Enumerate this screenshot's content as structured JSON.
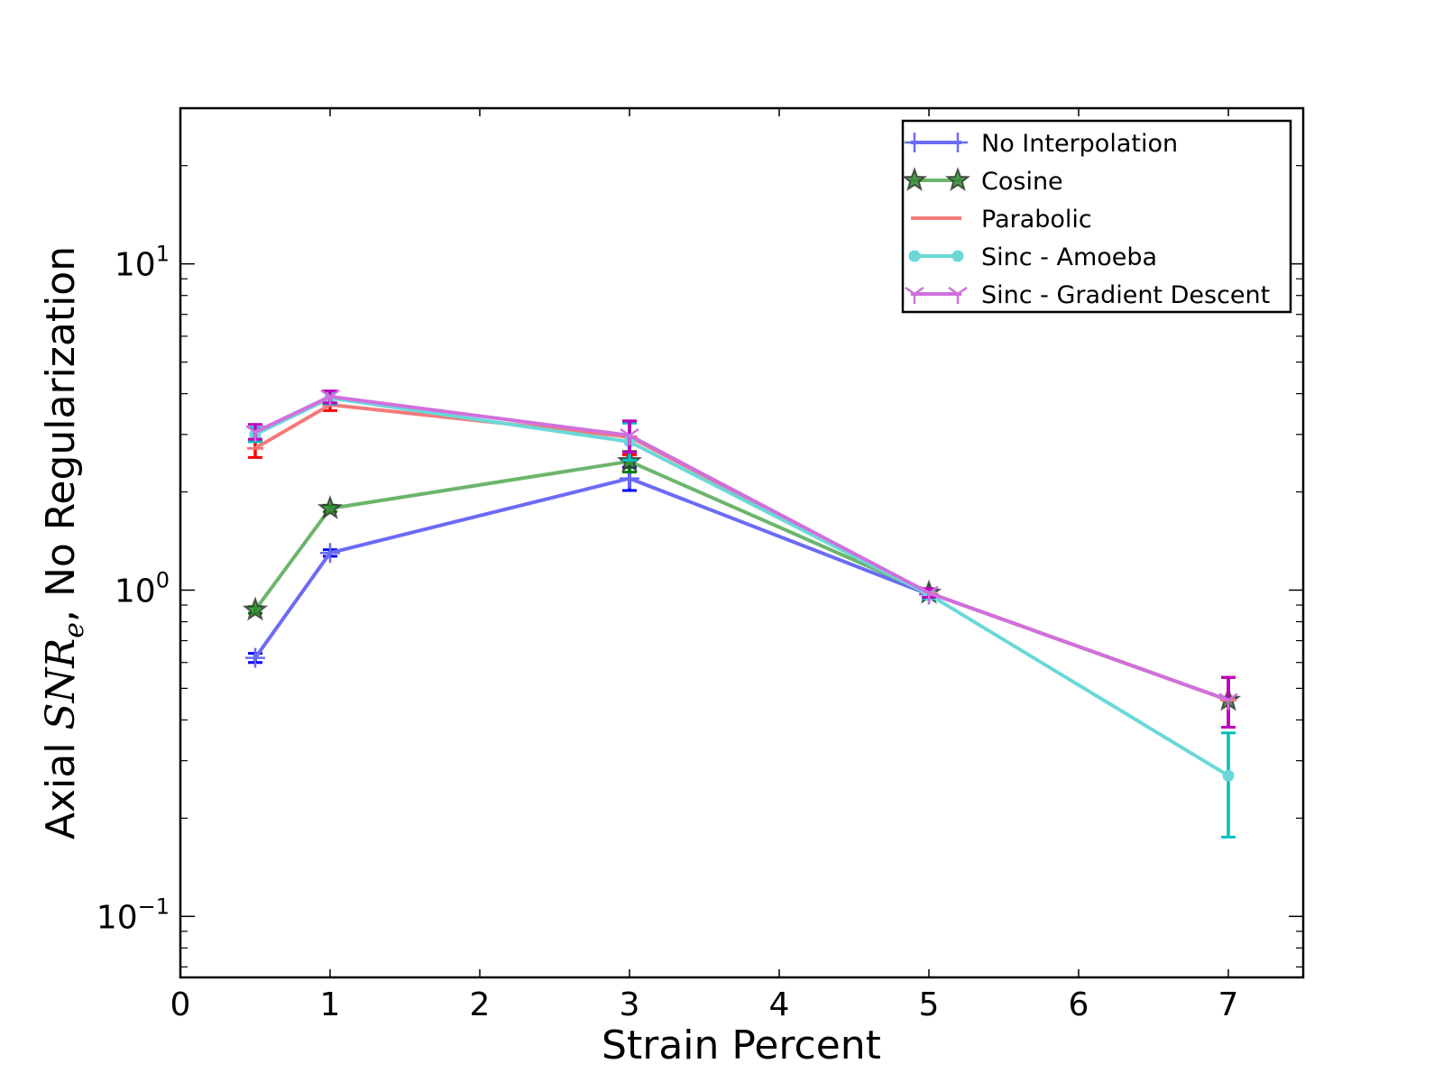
{
  "chart_data": {
    "type": "line",
    "xlabel": "Strain Percent",
    "ylabel_prefix": "Axial ",
    "ylabel_math": "SNR",
    "ylabel_sub": "e",
    "ylabel_suffix": ", No Regularization",
    "xlim": [
      0,
      7.5
    ],
    "ylim": [
      0.065,
      30
    ],
    "yscale": "log",
    "grid": false,
    "legend_position": "top-right",
    "x_ticks": [
      {
        "value": 0,
        "label": "0"
      },
      {
        "value": 1,
        "label": "1"
      },
      {
        "value": 2,
        "label": "2"
      },
      {
        "value": 3,
        "label": "3"
      },
      {
        "value": 4,
        "label": "4"
      },
      {
        "value": 5,
        "label": "5"
      },
      {
        "value": 6,
        "label": "6"
      },
      {
        "value": 7,
        "label": "7"
      }
    ],
    "y_ticks": [
      {
        "value": 0.1,
        "base": "10",
        "exp": "−1"
      },
      {
        "value": 1,
        "base": "10",
        "exp": "0"
      },
      {
        "value": 10,
        "base": "10",
        "exp": "1"
      }
    ],
    "x": [
      0.5,
      1,
      3,
      5,
      7
    ],
    "series": [
      {
        "name": "No Interpolation",
        "line_color": "#6b6bf5",
        "err_color": "#0000ff",
        "marker": "plus",
        "x": [
          0.5,
          1,
          3,
          5
        ],
        "values": [
          0.62,
          1.3,
          2.2,
          0.97
        ],
        "err_low": [
          0.6,
          1.27,
          2.02,
          0.94
        ],
        "err_high": [
          0.64,
          1.33,
          2.38,
          1.0
        ]
      },
      {
        "name": "Cosine",
        "line_color": "#6cb56c",
        "err_color": "#008000",
        "marker": "star",
        "x": [
          0.5,
          1,
          3,
          5,
          7
        ],
        "values": [
          0.87,
          1.78,
          2.48,
          0.98,
          0.46
        ],
        "err_low": [
          0.85,
          1.74,
          2.3,
          0.95,
          0.38
        ],
        "err_high": [
          0.89,
          1.82,
          2.66,
          1.01,
          0.54
        ]
      },
      {
        "name": "Parabolic",
        "line_color": "#f57878",
        "err_color": "#ff0000",
        "marker": "hline",
        "x": [
          0.5,
          1,
          3,
          5,
          7
        ],
        "values": [
          2.72,
          3.7,
          2.95,
          0.98,
          0.46
        ],
        "err_low": [
          2.55,
          3.55,
          2.6,
          0.95,
          0.38
        ],
        "err_high": [
          2.9,
          3.85,
          3.3,
          1.01,
          0.54
        ]
      },
      {
        "name": "Sinc - Amoeba",
        "line_color": "#6ad8d8",
        "err_color": "#00bfbf",
        "marker": "circle",
        "x": [
          0.5,
          1,
          3,
          5,
          7
        ],
        "values": [
          3.0,
          3.88,
          2.85,
          0.97,
          0.27
        ],
        "err_low": [
          2.85,
          3.72,
          2.5,
          0.94,
          0.175
        ],
        "err_high": [
          3.15,
          4.05,
          3.25,
          1.0,
          0.365
        ]
      },
      {
        "name": "Sinc - Gradient Descent",
        "line_color": "#d070dc",
        "err_color": "#bf00bf",
        "marker": "tri",
        "x": [
          0.5,
          1,
          3,
          5,
          7
        ],
        "values": [
          3.05,
          3.92,
          2.98,
          0.98,
          0.46
        ],
        "err_low": [
          2.9,
          3.75,
          2.65,
          0.95,
          0.38
        ],
        "err_high": [
          3.22,
          4.08,
          3.3,
          1.01,
          0.54
        ]
      }
    ]
  }
}
